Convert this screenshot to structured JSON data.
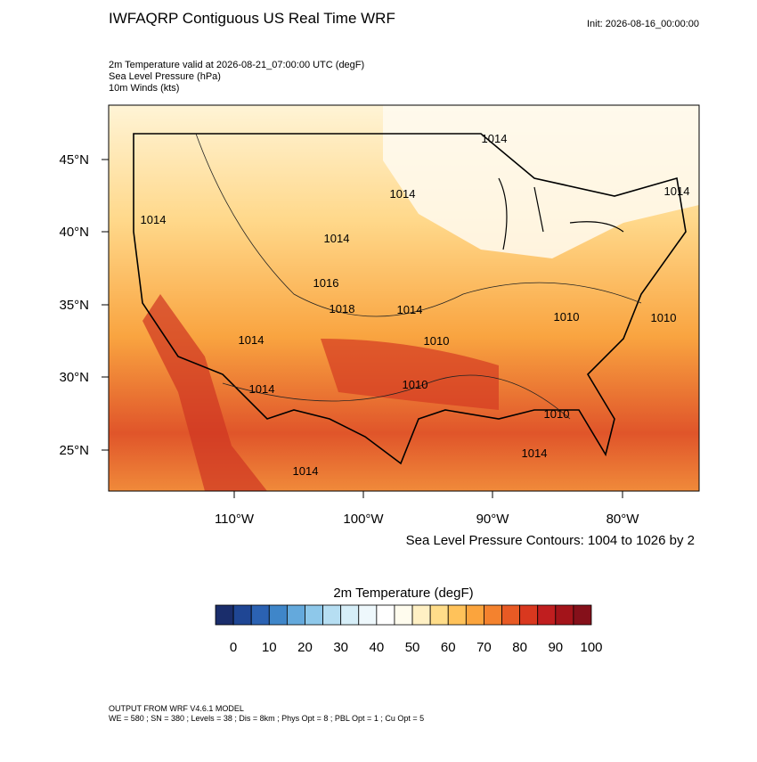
{
  "header": {
    "title": "IWFAQRP Contiguous US Real Time WRF",
    "init": "Init: 2026-08-16_00:00:00",
    "fields": [
      "2m Temperature valid at 2026-08-21_07:00:00 UTC   (degF)",
      "Sea Level Pressure   (hPa)",
      "10m Winds   (kts)"
    ]
  },
  "map": {
    "lat_labels": [
      "45°N",
      "40°N",
      "35°N",
      "30°N",
      "25°N"
    ],
    "lon_labels": [
      "110°W",
      "100°W",
      "90°W",
      "80°W"
    ],
    "contour_labels": [
      "1014",
      "1014",
      "1014",
      "1014",
      "1014",
      "1018",
      "1010",
      "1010",
      "1010",
      "1010",
      "1014",
      "1014",
      "1010",
      "1014",
      "1014",
      "1014",
      "1016"
    ],
    "contour_note": "Sea Level Pressure Contours: 1004 to 1026 by 2"
  },
  "colorbar": {
    "title": "2m Temperature  (degF)",
    "colors": [
      "#1a2d6b",
      "#1f4694",
      "#2b62b3",
      "#3f86c9",
      "#64a9dc",
      "#8ec8ea",
      "#b6def2",
      "#d6eef8",
      "#eef8fc",
      "#ffffff",
      "#fffcee",
      "#fff0c4",
      "#ffdd8a",
      "#ffc25a",
      "#fba43d",
      "#f4822e",
      "#e85a24",
      "#d9381f",
      "#c01e1f",
      "#a3141a",
      "#85101a"
    ],
    "labels": [
      0,
      10,
      20,
      30,
      40,
      50,
      60,
      70,
      80,
      90,
      100
    ]
  },
  "footer": {
    "model": "OUTPUT FROM WRF V4.6.1 MODEL",
    "details": "WE = 580 ; SN = 380 ; Levels = 38 ; Dis = 8km ; Phys Opt = 8 ; PBL Opt = 1 ; Cu Opt = 5"
  }
}
